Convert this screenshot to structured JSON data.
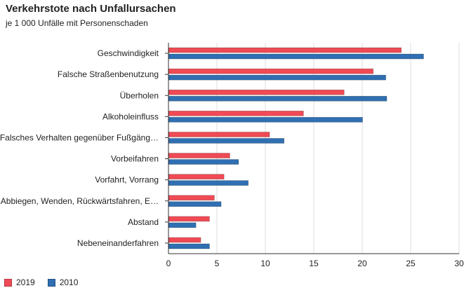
{
  "chart_data": {
    "type": "bar",
    "orientation": "horizontal",
    "title": "Verkehrstote nach Unfallursachen",
    "subtitle": "je 1 000 Unfälle mit Personenschaden",
    "categories": [
      "Geschwindigkeit",
      "Falsche Straßenbenutzung",
      "Überholen",
      "Alkoholeinfluss",
      "Falsches Verhalten gegenüber Fußgäng…",
      "Vorbeifahren",
      "Vorfahrt, Vorrang",
      "Abbiegen, Wenden, Rückwärtsfahren, E…",
      "Abstand",
      "Nebeneinanderfahren"
    ],
    "series": [
      {
        "name": "2019",
        "color": "#f04a55",
        "values": [
          24.0,
          21.1,
          18.1,
          13.9,
          10.4,
          6.3,
          5.7,
          4.7,
          4.2,
          3.3
        ]
      },
      {
        "name": "2010",
        "color": "#2f6fb2",
        "values": [
          26.3,
          22.4,
          22.5,
          20.0,
          11.9,
          7.2,
          8.2,
          5.4,
          2.8,
          4.2
        ]
      }
    ],
    "xlim": [
      0,
      30
    ],
    "xticks": [
      0,
      5,
      10,
      15,
      20,
      25,
      30
    ],
    "grid": "vertical",
    "legend_position": "bottom-left"
  }
}
